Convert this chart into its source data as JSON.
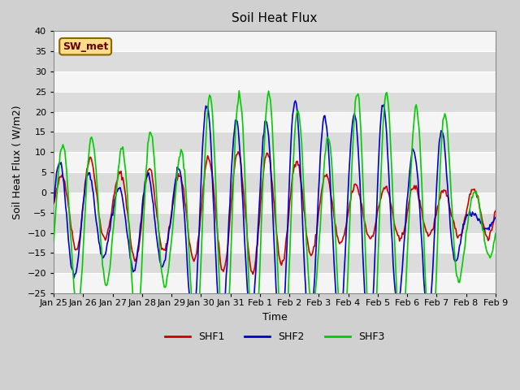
{
  "title": "Soil Heat Flux",
  "xlabel": "Time",
  "ylabel": "Soil Heat Flux ( W/m2)",
  "ylim": [
    -25,
    40
  ],
  "yticks": [
    -25,
    -20,
    -15,
    -10,
    -5,
    0,
    5,
    10,
    15,
    20,
    25,
    30,
    35,
    40
  ],
  "x_tick_labels": [
    "Jan 25",
    "Jan 26",
    "Jan 27",
    "Jan 28",
    "Jan 29",
    "Jan 30",
    "Jan 31",
    "Feb 1",
    "Feb 2",
    "Feb 3",
    "Feb 4",
    "Feb 5",
    "Feb 6",
    "Feb 7",
    "Feb 8",
    "Feb 9"
  ],
  "colors": {
    "SHF1": "#cc0000",
    "SHF2": "#0000cc",
    "SHF3": "#00cc00",
    "sw_met_bg": "#ffdd88",
    "sw_met_border": "#886600",
    "sw_met_text": "#660000"
  },
  "sw_met_label": "SW_met",
  "n_points": 480,
  "days": 15,
  "shf1_amplitudes": [
    5,
    13,
    7,
    13,
    8,
    13,
    15,
    15,
    13,
    10,
    7,
    6,
    7,
    5,
    6
  ],
  "shf2_amplitudes": [
    15,
    13,
    7,
    13,
    9,
    30,
    25,
    23,
    31,
    26,
    25,
    32,
    15,
    27,
    2
  ],
  "shf3_amplitudes": [
    17,
    23,
    14,
    28,
    12,
    32,
    32,
    33,
    33,
    17,
    32,
    35,
    27,
    35,
    8
  ],
  "shf1_offsets": [
    -3,
    -3,
    -3,
    -6,
    -5,
    -5,
    -5,
    -5,
    -4,
    -5,
    -5,
    -5,
    -5,
    -5,
    -5
  ],
  "shf2_offsets": [
    -7,
    -7,
    -7,
    -8,
    -8,
    -7,
    -7,
    -7,
    -7,
    -7,
    -7,
    -7,
    -7,
    -7,
    -7
  ],
  "shf3_offsets": [
    -7,
    -7,
    -7,
    -8,
    -8,
    -8,
    -8,
    -8,
    -8,
    -8,
    -8,
    -8,
    -8,
    -8,
    -8
  ]
}
